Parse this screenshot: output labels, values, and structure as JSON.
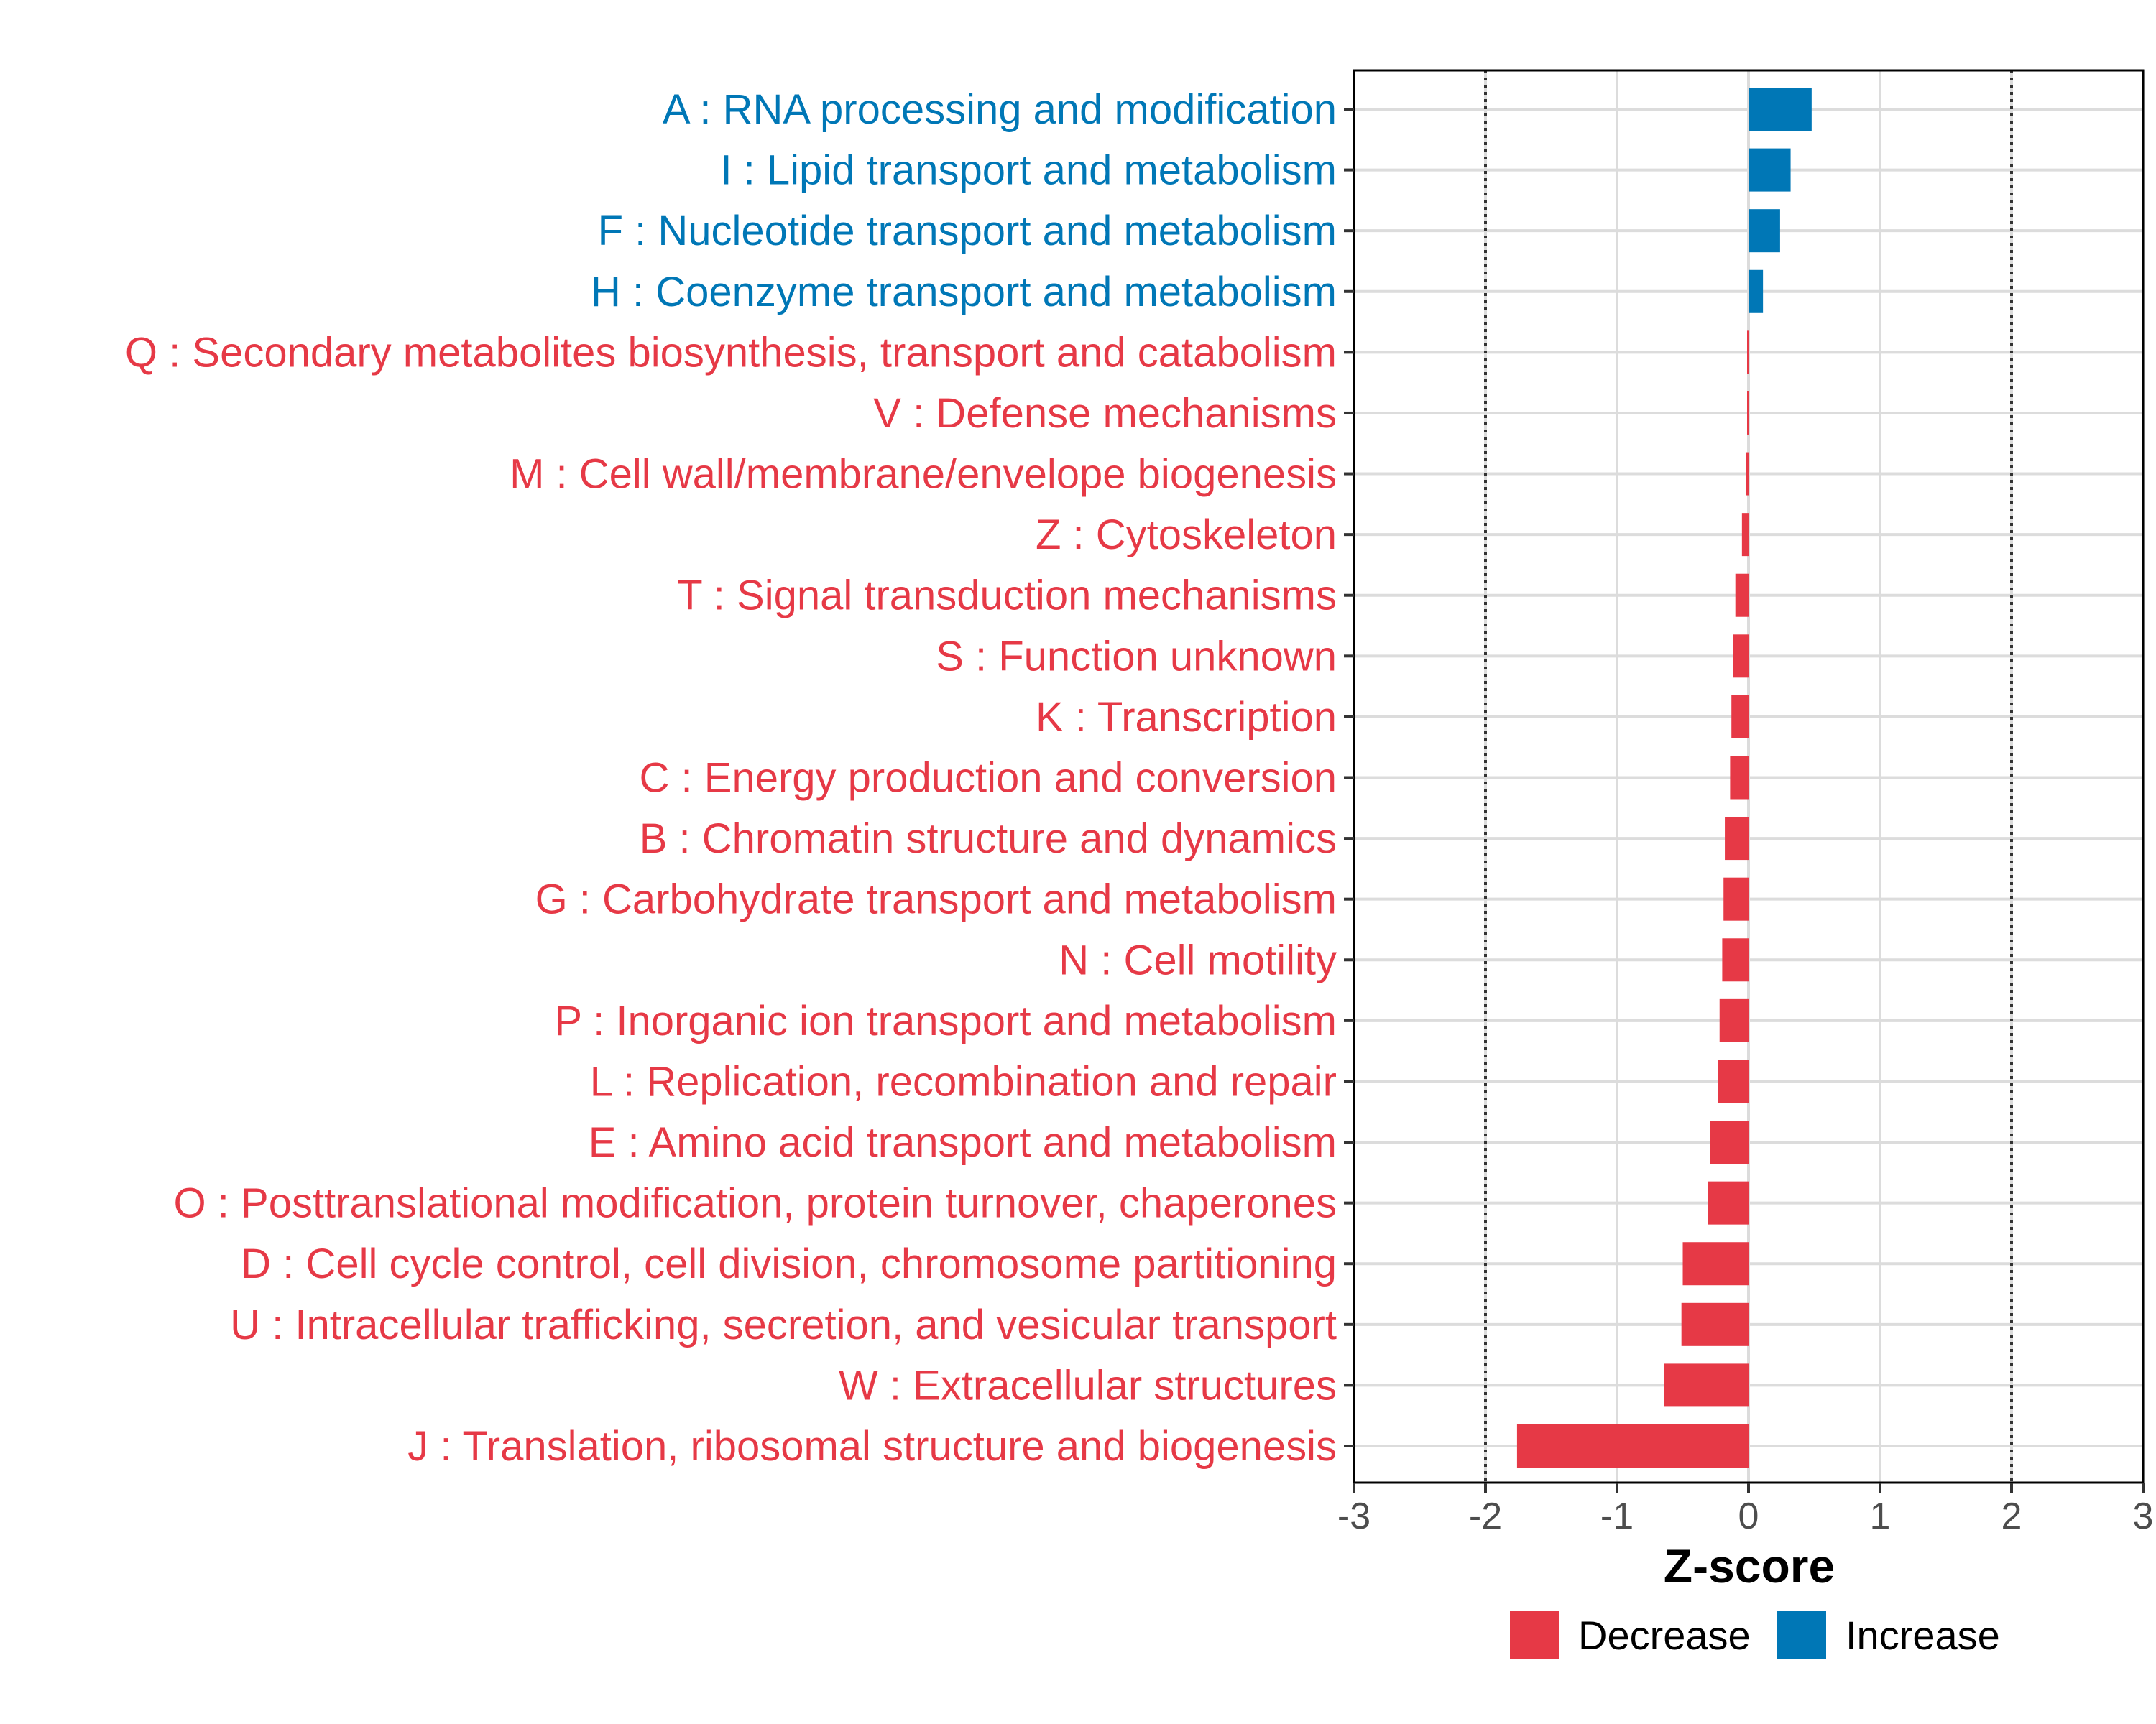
{
  "chart_data": {
    "type": "bar",
    "orientation": "horizontal",
    "title": "",
    "xlabel": "Z-score",
    "ylabel": "",
    "xlim": [
      -3,
      3
    ],
    "xticks": [
      -3,
      -2,
      -1,
      0,
      1,
      2,
      3
    ],
    "reference_lines": [
      -2,
      2
    ],
    "grid": true,
    "legend_position": "bottom",
    "colors": {
      "Decrease": "#e63946",
      "Increase": "#0077b6"
    },
    "legend": [
      {
        "label": "Decrease",
        "color": "#e63946"
      },
      {
        "label": "Increase",
        "color": "#0077b6"
      }
    ],
    "categories": [
      {
        "label": "A : RNA processing and modification",
        "value": 0.48,
        "direction": "Increase"
      },
      {
        "label": "I : Lipid transport and metabolism",
        "value": 0.32,
        "direction": "Increase"
      },
      {
        "label": "F : Nucleotide transport and metabolism",
        "value": 0.24,
        "direction": "Increase"
      },
      {
        "label": "H : Coenzyme transport and metabolism",
        "value": 0.11,
        "direction": "Increase"
      },
      {
        "label": "Q : Secondary metabolites biosynthesis, transport and catabolism",
        "value": -0.01,
        "direction": "Decrease"
      },
      {
        "label": "V : Defense mechanisms",
        "value": -0.01,
        "direction": "Decrease"
      },
      {
        "label": "M : Cell wall/membrane/envelope biogenesis",
        "value": -0.02,
        "direction": "Decrease"
      },
      {
        "label": "Z : Cytoskeleton",
        "value": -0.05,
        "direction": "Decrease"
      },
      {
        "label": "T : Signal transduction mechanisms",
        "value": -0.1,
        "direction": "Decrease"
      },
      {
        "label": "S : Function unknown",
        "value": -0.12,
        "direction": "Decrease"
      },
      {
        "label": "K : Transcription",
        "value": -0.13,
        "direction": "Decrease"
      },
      {
        "label": "C : Energy production and conversion",
        "value": -0.14,
        "direction": "Decrease"
      },
      {
        "label": "B : Chromatin structure and dynamics",
        "value": -0.18,
        "direction": "Decrease"
      },
      {
        "label": "G : Carbohydrate transport and metabolism",
        "value": -0.19,
        "direction": "Decrease"
      },
      {
        "label": "N : Cell motility",
        "value": -0.2,
        "direction": "Decrease"
      },
      {
        "label": "P : Inorganic ion transport and metabolism",
        "value": -0.22,
        "direction": "Decrease"
      },
      {
        "label": "L : Replication, recombination and repair",
        "value": -0.23,
        "direction": "Decrease"
      },
      {
        "label": "E : Amino acid transport and metabolism",
        "value": -0.29,
        "direction": "Decrease"
      },
      {
        "label": "O : Posttranslational modification, protein turnover, chaperones",
        "value": -0.31,
        "direction": "Decrease"
      },
      {
        "label": "D : Cell cycle control, cell division, chromosome partitioning",
        "value": -0.5,
        "direction": "Decrease"
      },
      {
        "label": "U : Intracellular trafficking, secretion, and vesicular transport",
        "value": -0.51,
        "direction": "Decrease"
      },
      {
        "label": "W : Extracellular structures",
        "value": -0.64,
        "direction": "Decrease"
      },
      {
        "label": "J : Translation, ribosomal structure and biogenesis",
        "value": -1.76,
        "direction": "Decrease"
      }
    ]
  }
}
